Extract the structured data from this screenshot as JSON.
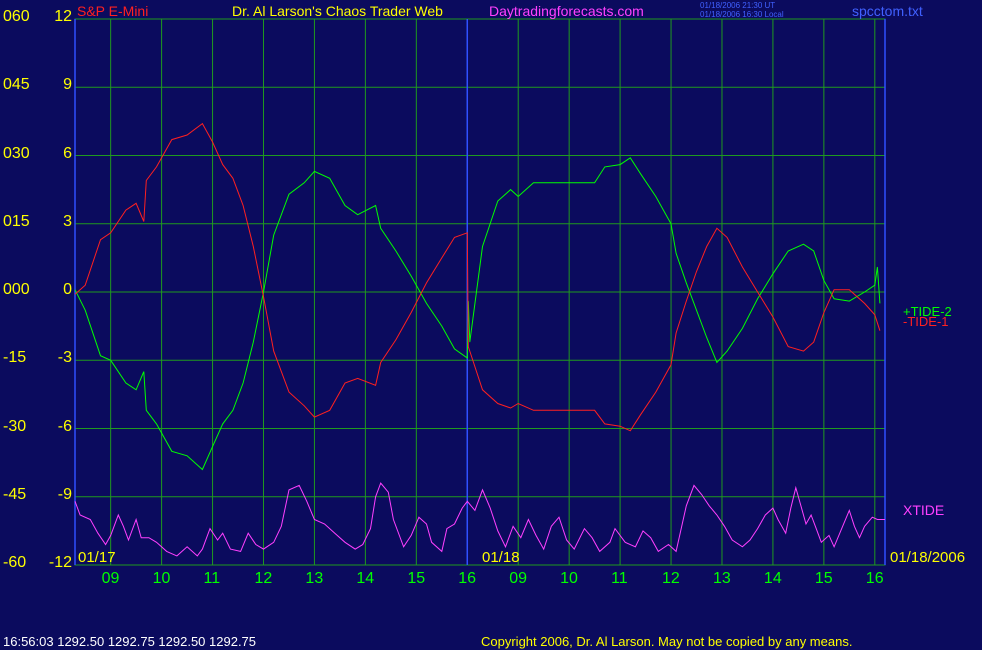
{
  "header": {
    "symbol": "S&P E-Mini",
    "title": "Dr. Al Larson's Chaos Trader Web",
    "site": "Daytradingforecasts.com",
    "time_ut": "01/18/2006 21:30 UT",
    "time_local": "01/18/2006 16:30 Local",
    "file": "spcctom.txt"
  },
  "footer": {
    "quote": "16:56:03  1292.50 1292.75 1292.50 1292.75",
    "copyright": "Copyright 2006, Dr. Al Larson. May not be copied by any means."
  },
  "colors": {
    "background": "#0b0b5e",
    "grid": "#1f9a1f",
    "tide_plus": "#00ff00",
    "tide_minus": "#ff2020",
    "xtide": "#ff40ff",
    "divider": "#3050ff"
  },
  "chart_data": {
    "type": "line",
    "y_left_labels": [
      "060",
      "045",
      "030",
      "015",
      "000",
      "-15",
      "-30",
      "-45",
      "-60"
    ],
    "y_right_labels": [
      "12",
      "9",
      "6",
      "3",
      "0",
      "-3",
      "-6",
      "-9",
      "-12"
    ],
    "ylim": [
      -12,
      12
    ],
    "x_hour_labels": [
      "09",
      "10",
      "11",
      "12",
      "13",
      "14",
      "15",
      "16",
      "09",
      "10",
      "11",
      "12",
      "13",
      "14",
      "15",
      "16"
    ],
    "date_labels": [
      "01/17",
      "01/18",
      "01/18/2006"
    ],
    "xlim": [
      8.3,
      24.2
    ],
    "grid": true,
    "series": [
      {
        "name": "+TIDE-2",
        "color": "#00ff00",
        "points": [
          [
            8.3,
            0.1
          ],
          [
            8.5,
            -0.8
          ],
          [
            8.8,
            -2.8
          ],
          [
            9.0,
            -3.0
          ],
          [
            9.3,
            -4.0
          ],
          [
            9.5,
            -4.3
          ],
          [
            9.65,
            -3.5
          ],
          [
            9.7,
            -5.2
          ],
          [
            9.9,
            -5.8
          ],
          [
            10.2,
            -7.0
          ],
          [
            10.5,
            -7.2
          ],
          [
            10.8,
            -7.8
          ],
          [
            11.0,
            -6.8
          ],
          [
            11.2,
            -5.8
          ],
          [
            11.4,
            -5.2
          ],
          [
            11.6,
            -4.0
          ],
          [
            11.8,
            -2.2
          ],
          [
            12.0,
            0.0
          ],
          [
            12.2,
            2.5
          ],
          [
            12.5,
            4.3
          ],
          [
            12.8,
            4.8
          ],
          [
            13.0,
            5.3
          ],
          [
            13.3,
            5.0
          ],
          [
            13.6,
            3.8
          ],
          [
            13.85,
            3.4
          ],
          [
            14.2,
            3.8
          ],
          [
            14.3,
            2.8
          ],
          [
            14.6,
            1.8
          ],
          [
            14.9,
            0.7
          ],
          [
            15.2,
            -0.5
          ],
          [
            15.5,
            -1.5
          ],
          [
            15.75,
            -2.5
          ],
          [
            16.0,
            -2.9
          ],
          [
            16.02,
            -0.4
          ],
          [
            16.05,
            -2.2
          ],
          [
            16.3,
            2.0
          ],
          [
            16.6,
            4.0
          ],
          [
            16.85,
            4.5
          ],
          [
            17.0,
            4.2
          ],
          [
            17.3,
            4.8
          ],
          [
            17.6,
            4.8
          ],
          [
            18.0,
            4.8
          ],
          [
            18.5,
            4.8
          ],
          [
            18.7,
            5.5
          ],
          [
            19.0,
            5.6
          ],
          [
            19.2,
            5.9
          ],
          [
            19.4,
            5.2
          ],
          [
            19.7,
            4.2
          ],
          [
            20.0,
            3.0
          ],
          [
            20.1,
            1.7
          ],
          [
            20.3,
            0.4
          ],
          [
            20.5,
            -0.8
          ],
          [
            20.7,
            -2.0
          ],
          [
            20.9,
            -3.1
          ],
          [
            21.1,
            -2.6
          ],
          [
            21.4,
            -1.6
          ],
          [
            21.7,
            -0.3
          ],
          [
            22.0,
            0.8
          ],
          [
            22.3,
            1.8
          ],
          [
            22.6,
            2.1
          ],
          [
            22.8,
            1.8
          ],
          [
            23.0,
            0.5
          ],
          [
            23.2,
            -0.3
          ],
          [
            23.5,
            -0.4
          ],
          [
            23.8,
            0.0
          ],
          [
            24.0,
            0.3
          ],
          [
            24.05,
            1.1
          ],
          [
            24.1,
            -0.5
          ]
        ]
      },
      {
        "name": "-TIDE-1",
        "color": "#ff2020",
        "points": [
          [
            8.3,
            -0.1
          ],
          [
            8.5,
            0.3
          ],
          [
            8.8,
            2.3
          ],
          [
            9.0,
            2.6
          ],
          [
            9.3,
            3.6
          ],
          [
            9.5,
            3.9
          ],
          [
            9.65,
            3.1
          ],
          [
            9.7,
            4.9
          ],
          [
            9.9,
            5.5
          ],
          [
            10.2,
            6.7
          ],
          [
            10.5,
            6.9
          ],
          [
            10.8,
            7.4
          ],
          [
            11.0,
            6.6
          ],
          [
            11.2,
            5.6
          ],
          [
            11.4,
            5.0
          ],
          [
            11.6,
            3.8
          ],
          [
            11.8,
            2.0
          ],
          [
            12.0,
            -0.2
          ],
          [
            12.2,
            -2.6
          ],
          [
            12.5,
            -4.4
          ],
          [
            12.8,
            -5.0
          ],
          [
            13.0,
            -5.5
          ],
          [
            13.3,
            -5.2
          ],
          [
            13.6,
            -4.0
          ],
          [
            13.85,
            -3.8
          ],
          [
            14.2,
            -4.1
          ],
          [
            14.3,
            -3.1
          ],
          [
            14.6,
            -2.1
          ],
          [
            14.9,
            -0.9
          ],
          [
            15.2,
            0.4
          ],
          [
            15.5,
            1.5
          ],
          [
            15.75,
            2.4
          ],
          [
            16.0,
            2.6
          ],
          [
            16.02,
            -2.4
          ],
          [
            16.3,
            -4.3
          ],
          [
            16.6,
            -4.9
          ],
          [
            16.85,
            -5.1
          ],
          [
            17.0,
            -4.9
          ],
          [
            17.3,
            -5.2
          ],
          [
            17.6,
            -5.2
          ],
          [
            18.0,
            -5.2
          ],
          [
            18.5,
            -5.2
          ],
          [
            18.7,
            -5.8
          ],
          [
            19.0,
            -5.9
          ],
          [
            19.2,
            -6.1
          ],
          [
            19.4,
            -5.4
          ],
          [
            19.7,
            -4.4
          ],
          [
            20.0,
            -3.2
          ],
          [
            20.1,
            -1.8
          ],
          [
            20.3,
            -0.4
          ],
          [
            20.5,
            0.9
          ],
          [
            20.7,
            2.0
          ],
          [
            20.9,
            2.8
          ],
          [
            21.1,
            2.4
          ],
          [
            21.4,
            1.1
          ],
          [
            21.7,
            0.0
          ],
          [
            22.0,
            -1.1
          ],
          [
            22.3,
            -2.4
          ],
          [
            22.6,
            -2.6
          ],
          [
            22.8,
            -2.2
          ],
          [
            23.0,
            -0.9
          ],
          [
            23.2,
            0.1
          ],
          [
            23.5,
            0.1
          ],
          [
            23.8,
            -0.5
          ],
          [
            24.0,
            -1.0
          ],
          [
            24.1,
            -1.7
          ]
        ]
      },
      {
        "name": "XTIDE",
        "color": "#ff40ff",
        "points": [
          [
            8.3,
            -9.2
          ],
          [
            8.4,
            -9.8
          ],
          [
            8.6,
            -10.0
          ],
          [
            8.75,
            -10.6
          ],
          [
            8.9,
            -11.1
          ],
          [
            9.0,
            -10.7
          ],
          [
            9.15,
            -9.8
          ],
          [
            9.25,
            -10.3
          ],
          [
            9.35,
            -10.9
          ],
          [
            9.5,
            -10.0
          ],
          [
            9.6,
            -10.8
          ],
          [
            9.75,
            -10.8
          ],
          [
            9.9,
            -11.0
          ],
          [
            10.1,
            -11.4
          ],
          [
            10.3,
            -11.6
          ],
          [
            10.5,
            -11.2
          ],
          [
            10.7,
            -11.6
          ],
          [
            10.8,
            -11.3
          ],
          [
            10.95,
            -10.4
          ],
          [
            11.1,
            -10.9
          ],
          [
            11.2,
            -10.6
          ],
          [
            11.35,
            -11.3
          ],
          [
            11.55,
            -11.4
          ],
          [
            11.7,
            -10.6
          ],
          [
            11.85,
            -11.1
          ],
          [
            12.0,
            -11.3
          ],
          [
            12.2,
            -11.0
          ],
          [
            12.35,
            -10.3
          ],
          [
            12.5,
            -8.7
          ],
          [
            12.7,
            -8.5
          ],
          [
            12.85,
            -9.2
          ],
          [
            13.0,
            -10.0
          ],
          [
            13.2,
            -10.2
          ],
          [
            13.4,
            -10.6
          ],
          [
            13.6,
            -11.0
          ],
          [
            13.8,
            -11.3
          ],
          [
            13.95,
            -11.1
          ],
          [
            14.1,
            -10.4
          ],
          [
            14.2,
            -9.0
          ],
          [
            14.3,
            -8.4
          ],
          [
            14.45,
            -8.8
          ],
          [
            14.55,
            -10.0
          ],
          [
            14.75,
            -11.2
          ],
          [
            14.9,
            -10.7
          ],
          [
            15.05,
            -9.9
          ],
          [
            15.2,
            -10.2
          ],
          [
            15.3,
            -11.0
          ],
          [
            15.5,
            -11.4
          ],
          [
            15.6,
            -10.4
          ],
          [
            15.75,
            -10.2
          ],
          [
            15.9,
            -9.5
          ],
          [
            16.0,
            -9.2
          ],
          [
            16.15,
            -9.6
          ],
          [
            16.3,
            -8.7
          ],
          [
            16.45,
            -9.5
          ],
          [
            16.6,
            -10.5
          ],
          [
            16.75,
            -11.2
          ],
          [
            16.9,
            -10.3
          ],
          [
            17.05,
            -10.8
          ],
          [
            17.2,
            -10.0
          ],
          [
            17.35,
            -10.7
          ],
          [
            17.5,
            -11.3
          ],
          [
            17.65,
            -10.3
          ],
          [
            17.8,
            -9.9
          ],
          [
            17.95,
            -10.9
          ],
          [
            18.1,
            -11.3
          ],
          [
            18.3,
            -10.4
          ],
          [
            18.45,
            -10.8
          ],
          [
            18.6,
            -11.4
          ],
          [
            18.8,
            -11.0
          ],
          [
            18.9,
            -10.4
          ],
          [
            19.1,
            -11.0
          ],
          [
            19.3,
            -11.2
          ],
          [
            19.45,
            -10.5
          ],
          [
            19.6,
            -10.8
          ],
          [
            19.75,
            -11.4
          ],
          [
            19.95,
            -11.1
          ],
          [
            20.1,
            -11.4
          ],
          [
            20.3,
            -9.4
          ],
          [
            20.45,
            -8.5
          ],
          [
            20.6,
            -8.9
          ],
          [
            20.75,
            -9.4
          ],
          [
            20.9,
            -9.8
          ],
          [
            21.05,
            -10.3
          ],
          [
            21.2,
            -10.9
          ],
          [
            21.4,
            -11.2
          ],
          [
            21.55,
            -10.9
          ],
          [
            21.7,
            -10.4
          ],
          [
            21.85,
            -9.8
          ],
          [
            22.0,
            -9.5
          ],
          [
            22.1,
            -10.0
          ],
          [
            22.25,
            -10.6
          ],
          [
            22.35,
            -9.5
          ],
          [
            22.45,
            -8.6
          ],
          [
            22.55,
            -9.4
          ],
          [
            22.65,
            -10.2
          ],
          [
            22.75,
            -9.8
          ],
          [
            22.85,
            -10.4
          ],
          [
            22.95,
            -11.0
          ],
          [
            23.1,
            -10.7
          ],
          [
            23.2,
            -11.2
          ],
          [
            23.35,
            -10.4
          ],
          [
            23.5,
            -9.6
          ],
          [
            23.6,
            -10.3
          ],
          [
            23.7,
            -10.8
          ],
          [
            23.8,
            -10.3
          ],
          [
            23.95,
            -9.9
          ],
          [
            24.05,
            -10.0
          ],
          [
            24.2,
            -10.0
          ]
        ]
      }
    ],
    "legend": [
      {
        "label": "+TIDE-2",
        "color": "#00ff00"
      },
      {
        "label": "-TIDE-1",
        "color": "#ff2020"
      },
      {
        "label": "XTIDE",
        "color": "#ff40ff"
      }
    ]
  }
}
